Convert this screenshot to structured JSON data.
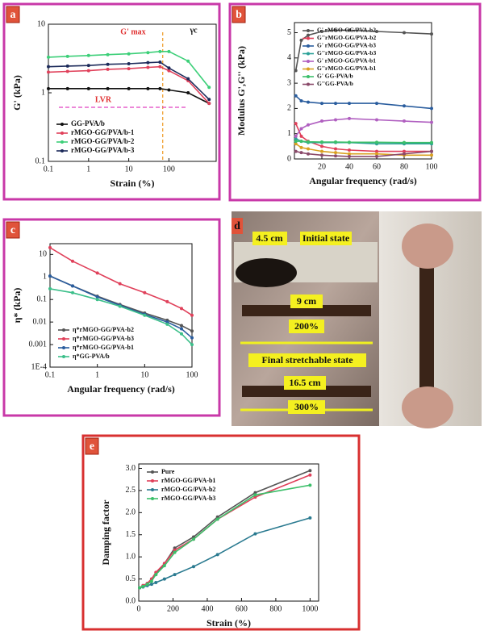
{
  "chart_data": [
    {
      "type": "line",
      "panel": "a",
      "xlabel": "Strain (%)",
      "ylabel": "G' (kPa)",
      "xscale": "log",
      "yscale": "log",
      "xlim": [
        0.1,
        1500
      ],
      "ylim": [
        0.1,
        10
      ],
      "xticks": [
        0.1,
        1,
        10,
        100
      ],
      "yticks": [
        0.1,
        1,
        10
      ],
      "legend": "lower left",
      "annotations": [
        "G' max",
        "γc",
        "LVR"
      ],
      "critical_strain": 70,
      "x": [
        0.1,
        0.3,
        1,
        3,
        10,
        30,
        60,
        100,
        300,
        1000
      ],
      "series": [
        {
          "name": "GG-PVA/b",
          "color": "#111111",
          "values": [
            1.15,
            1.15,
            1.15,
            1.15,
            1.15,
            1.15,
            1.15,
            1.1,
            1.0,
            0.7
          ]
        },
        {
          "name": "rMGO-GG/PVA/b-1",
          "color": "#e0405a",
          "values": [
            2.0,
            2.05,
            2.1,
            2.2,
            2.25,
            2.35,
            2.4,
            2.1,
            1.5,
            0.7
          ]
        },
        {
          "name": "rMGO-GG/PVA/b-2",
          "color": "#3ccf78",
          "values": [
            3.3,
            3.4,
            3.5,
            3.6,
            3.7,
            3.85,
            4.0,
            4.0,
            2.9,
            1.2
          ]
        },
        {
          "name": "rMGO-GG/PVA/b-3",
          "color": "#1c2a5a",
          "values": [
            2.4,
            2.45,
            2.5,
            2.6,
            2.65,
            2.75,
            2.8,
            2.3,
            1.6,
            0.8
          ]
        }
      ]
    },
    {
      "type": "line",
      "panel": "b",
      "xlabel": "Angular frequency (rad/s)",
      "ylabel": "Modulus G',G'' (kPa)",
      "xlim": [
        0,
        100
      ],
      "ylim": [
        0,
        5.4
      ],
      "xticks": [
        20,
        40,
        60,
        80,
        100
      ],
      "yticks": [
        0,
        1,
        2,
        3,
        4,
        5
      ],
      "legend": "upper left",
      "x": [
        1,
        5,
        10,
        20,
        30,
        40,
        60,
        80,
        100
      ],
      "series": [
        {
          "name": "G' rMGO-GG/PVA-b2",
          "color": "#555555",
          "values": [
            3.5,
            4.7,
            4.9,
            5.05,
            5.1,
            5.1,
            5.05,
            5.0,
            4.95
          ]
        },
        {
          "name": "G''rMGO-GG/PVA-b2",
          "color": "#e0405a",
          "values": [
            1.4,
            0.9,
            0.7,
            0.5,
            0.4,
            0.35,
            0.3,
            0.3,
            0.3
          ]
        },
        {
          "name": "G' rMGO-GG/PVA-b3",
          "color": "#2a5d9e",
          "values": [
            2.5,
            2.3,
            2.25,
            2.2,
            2.2,
            2.2,
            2.2,
            2.1,
            2.0
          ]
        },
        {
          "name": "G''rMGO-GG/PVA-b3",
          "color": "#2aa198",
          "values": [
            0.8,
            0.7,
            0.65,
            0.65,
            0.65,
            0.65,
            0.6,
            0.6,
            0.6
          ]
        },
        {
          "name": "G' rMGO-GG/PVA-b1",
          "color": "#b05fc0",
          "values": [
            0.9,
            1.2,
            1.35,
            1.5,
            1.55,
            1.6,
            1.55,
            1.5,
            1.45
          ]
        },
        {
          "name": "G''rMGO-GG/PVA-b1",
          "color": "#d9a020",
          "values": [
            0.6,
            0.45,
            0.4,
            0.3,
            0.25,
            0.2,
            0.2,
            0.15,
            0.15
          ]
        },
        {
          "name": "G' GG-PVA/b",
          "color": "#3cbf6a",
          "values": [
            0.7,
            0.7,
            0.68,
            0.67,
            0.67,
            0.66,
            0.66,
            0.65,
            0.65
          ]
        },
        {
          "name": "G''GG-PVA/b",
          "color": "#8a4a6a",
          "values": [
            0.3,
            0.25,
            0.2,
            0.15,
            0.12,
            0.1,
            0.1,
            0.2,
            0.3
          ]
        }
      ]
    },
    {
      "type": "line",
      "panel": "c",
      "xlabel": "Angular frequency (rad/s)",
      "ylabel": "η* (kPa)",
      "xscale": "log",
      "yscale": "log",
      "xlim": [
        0.1,
        100
      ],
      "ylim": [
        0.0001,
        30
      ],
      "xticks": [
        0.1,
        1,
        10,
        100
      ],
      "yticks": [
        {
          "value": 0.0001,
          "label": "1E-4"
        },
        0.001,
        0.01,
        0.1,
        1,
        10
      ],
      "legend": "lower left",
      "x": [
        0.1,
        0.3,
        1,
        3,
        10,
        30,
        60,
        100
      ],
      "series": [
        {
          "name": "η*rMGO-GG/PVA-b2",
          "color": "#555555",
          "values": [
            1.1,
            0.4,
            0.14,
            0.06,
            0.025,
            0.012,
            0.007,
            0.004
          ]
        },
        {
          "name": "η*rMGO-GG/PVA-b3",
          "color": "#e0405a",
          "values": [
            20,
            5,
            1.5,
            0.5,
            0.2,
            0.08,
            0.04,
            0.02
          ]
        },
        {
          "name": "η*rMGO-GG/PVA-b1",
          "color": "#2a5d9e",
          "values": [
            1.1,
            0.4,
            0.13,
            0.055,
            0.022,
            0.01,
            0.005,
            0.002
          ]
        },
        {
          "name": "η*GG-PVA/b",
          "color": "#3cbf8a",
          "values": [
            0.3,
            0.2,
            0.1,
            0.05,
            0.02,
            0.008,
            0.003,
            0.001
          ]
        }
      ]
    },
    {
      "type": "line",
      "panel": "e",
      "xlabel": "Strain (%)",
      "ylabel": "Damping factor",
      "xlim": [
        0,
        1050
      ],
      "ylim": [
        0,
        3.1
      ],
      "xticks": [
        0,
        200,
        400,
        600,
        800,
        1000
      ],
      "yticks": [
        {
          "value": 0,
          "label": "0.0"
        },
        0.5,
        {
          "value": 1,
          "label": "1.0"
        },
        1.5,
        {
          "value": 2,
          "label": "2.0"
        },
        2.5,
        {
          "value": 3,
          "label": "3.0"
        }
      ],
      "legend": "upper left",
      "x": [
        5,
        25,
        50,
        75,
        100,
        150,
        210,
        320,
        460,
        680,
        1000
      ],
      "series": [
        {
          "name": "Pure",
          "color": "#555555",
          "values": [
            0.3,
            0.35,
            0.4,
            0.5,
            0.6,
            0.85,
            1.2,
            1.45,
            1.9,
            2.45,
            2.95
          ]
        },
        {
          "name": "rMGO-GG/PVA-b1",
          "color": "#e0405a",
          "values": [
            0.3,
            0.35,
            0.4,
            0.5,
            0.65,
            0.85,
            1.15,
            1.4,
            1.85,
            2.35,
            2.85
          ]
        },
        {
          "name": "rMGO-GG/PVA-b2",
          "color": "#2a7a90",
          "values": [
            0.3,
            0.32,
            0.35,
            0.38,
            0.42,
            0.5,
            0.6,
            0.78,
            1.05,
            1.52,
            1.88
          ]
        },
        {
          "name": "rMGO-GG/PVA-b3",
          "color": "#3cbf6a",
          "values": [
            0.3,
            0.33,
            0.38,
            0.45,
            0.6,
            0.8,
            1.1,
            1.4,
            1.85,
            2.4,
            2.62
          ]
        }
      ]
    }
  ],
  "photo": {
    "panel": "d",
    "labels": [
      "4.5 cm",
      "Initial state",
      "9 cm",
      "200%",
      "Final stretchable state",
      "16.5 cm",
      "300%"
    ]
  }
}
